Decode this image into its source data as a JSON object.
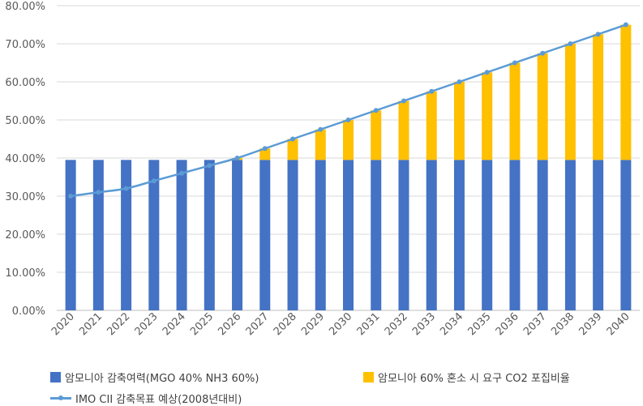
{
  "chart_data": {
    "type": "bar",
    "stacked": true,
    "categories": [
      "2020",
      "2021",
      "2022",
      "2023",
      "2024",
      "2025",
      "2026",
      "2027",
      "2028",
      "2029",
      "2030",
      "2031",
      "2032",
      "2033",
      "2034",
      "2035",
      "2036",
      "2037",
      "2038",
      "2039",
      "2040"
    ],
    "series": [
      {
        "name": "암모니아 감축여력(MGO 40% NH3 60%)",
        "kind": "bar",
        "color": "#4472c4",
        "values": [
          39.5,
          39.5,
          39.5,
          39.5,
          39.5,
          39.5,
          39.5,
          39.5,
          39.5,
          39.5,
          39.5,
          39.5,
          39.5,
          39.5,
          39.5,
          39.5,
          39.5,
          39.5,
          39.5,
          39.5,
          39.5
        ]
      },
      {
        "name": "암모니아 60% 혼소 시 요구 CO2 포집비율",
        "kind": "bar",
        "color": "#ffc000",
        "values": [
          0,
          0,
          0,
          0,
          0,
          0,
          0.5,
          3.0,
          5.5,
          8.0,
          10.5,
          13.0,
          15.5,
          18.0,
          20.5,
          23.0,
          25.5,
          28.0,
          30.5,
          33.0,
          35.5
        ]
      },
      {
        "name": "IMO CII 감축목표 예상(2008년대비)",
        "kind": "line",
        "color": "#5b9bd5",
        "values": [
          30,
          31,
          32,
          34,
          36,
          38,
          40,
          42.5,
          45,
          47.5,
          50,
          52.5,
          55,
          57.5,
          60,
          62.5,
          65,
          67.5,
          70,
          72.5,
          75
        ]
      }
    ],
    "ylim": [
      0,
      80
    ],
    "yticks": [
      "0.00%",
      "10.00%",
      "20.00%",
      "30.00%",
      "40.00%",
      "50.00%",
      "60.00%",
      "70.00%",
      "80.00%"
    ],
    "grid": true,
    "legend_position": "bottom",
    "title": "",
    "xlabel": "",
    "ylabel": ""
  }
}
